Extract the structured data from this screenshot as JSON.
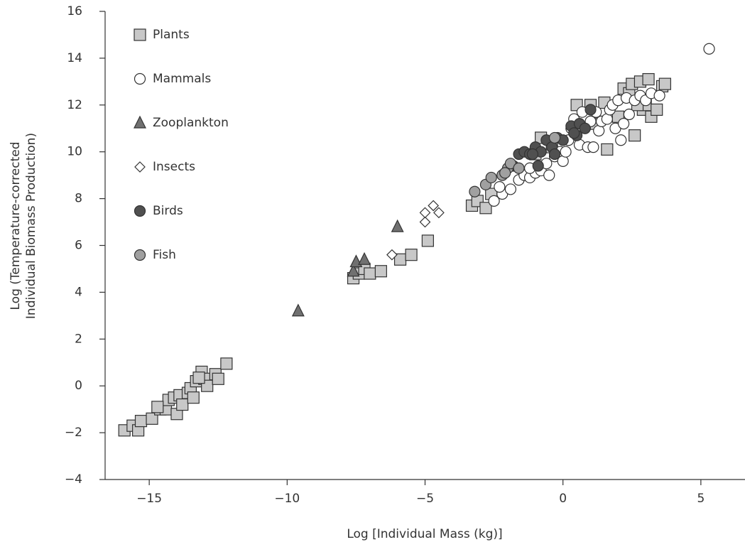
{
  "chart_data": {
    "type": "scatter",
    "xlabel": "Log [Individual Mass (kg)]",
    "ylabel_lines": [
      "Log (Temperature-corrected",
      "Individual Biomass Production)"
    ],
    "xlim": [
      -16.6,
      6.6
    ],
    "ylim": [
      -4,
      16
    ],
    "xticks": [
      {
        "value": -15,
        "label": "−15"
      },
      {
        "value": -10,
        "label": "−10"
      },
      {
        "value": -5,
        "label": "−5"
      },
      0,
      5
    ],
    "yticks": [
      {
        "value": -4,
        "label": "−4"
      },
      {
        "value": -2,
        "label": "−2"
      },
      0,
      2,
      4,
      6,
      8,
      10,
      12,
      14,
      16
    ],
    "legend": "upper left",
    "series": [
      {
        "name": "Plants",
        "marker": "square",
        "color": "#c8c8c8",
        "x": [
          -15.9,
          -15.6,
          -15.4,
          -15.3,
          -14.9,
          -14.6,
          -14.4,
          -14.3,
          -14.1,
          -14.0,
          -13.9,
          -13.8,
          -13.6,
          -13.5,
          -13.4,
          -13.3,
          -13.1,
          -13.0,
          -12.9,
          -12.6,
          -12.5,
          -12.2,
          -14.7,
          -13.2,
          -7.6,
          -7.4,
          -7.2,
          -7.0,
          -6.6,
          -5.9,
          -5.5,
          -4.9,
          -3.3,
          -3.1,
          -2.8,
          -2.6,
          -1.0,
          -0.8,
          -0.4,
          0.5,
          1.0,
          1.2,
          1.5,
          1.6,
          2.0,
          2.2,
          2.4,
          2.5,
          2.6,
          2.8,
          2.9,
          3.0,
          3.1,
          3.2,
          3.4,
          3.6,
          3.7,
          2.7
        ],
        "values": [
          -1.9,
          -1.7,
          -1.9,
          -1.5,
          -1.4,
          -1.0,
          -1.0,
          -0.6,
          -0.5,
          -1.2,
          -0.4,
          -0.8,
          -0.3,
          -0.1,
          -0.5,
          0.2,
          0.6,
          0.3,
          0.0,
          0.5,
          0.3,
          0.95,
          -0.9,
          0.35,
          4.6,
          4.8,
          5.0,
          4.8,
          4.9,
          5.4,
          5.6,
          6.2,
          7.7,
          7.9,
          7.6,
          8.2,
          9.9,
          10.6,
          10.2,
          12.0,
          12.0,
          11.2,
          12.1,
          10.1,
          11.5,
          12.7,
          12.5,
          12.9,
          10.7,
          13.0,
          11.8,
          12.0,
          13.1,
          11.5,
          11.8,
          12.8,
          12.9,
          12.0
        ]
      },
      {
        "name": "Mammals",
        "marker": "circle",
        "color": "#ffffff",
        "x": [
          -2.5,
          -2.2,
          -2.3,
          -1.9,
          -1.6,
          -1.4,
          -1.2,
          -1.0,
          -0.8,
          -0.6,
          -0.5,
          -0.3,
          -0.1,
          0.0,
          0.1,
          0.2,
          0.3,
          0.4,
          0.6,
          0.7,
          0.9,
          1.1,
          1.2,
          1.3,
          1.4,
          1.6,
          1.7,
          1.8,
          1.9,
          2.0,
          2.1,
          2.2,
          2.3,
          2.4,
          2.6,
          2.8,
          3.0,
          3.2,
          3.5,
          1.0,
          -1.2,
          5.3
        ],
        "values": [
          7.9,
          8.2,
          8.5,
          8.4,
          8.8,
          9.0,
          8.9,
          9.1,
          9.2,
          9.5,
          9.0,
          9.8,
          10.0,
          9.6,
          10.0,
          10.5,
          11.0,
          11.4,
          10.3,
          11.7,
          10.2,
          10.2,
          11.7,
          10.9,
          11.3,
          11.4,
          11.8,
          12.0,
          11.0,
          12.2,
          10.5,
          11.2,
          12.3,
          11.6,
          12.2,
          12.4,
          12.2,
          12.5,
          12.4,
          11.3,
          9.3,
          14.4
        ]
      },
      {
        "name": "Zooplankton",
        "marker": "triangle",
        "color": "#707070",
        "x": [
          -9.6,
          -7.6,
          -7.5,
          -7.2,
          -6.0
        ],
        "values": [
          3.2,
          4.9,
          5.3,
          5.4,
          6.8
        ]
      },
      {
        "name": "Insects",
        "marker": "diamond",
        "color": "#ffffff",
        "x": [
          -6.2,
          -5.0,
          -5.0,
          -4.7,
          -4.5
        ],
        "values": [
          5.6,
          7.0,
          7.4,
          7.7,
          7.4
        ]
      },
      {
        "name": "Birds",
        "marker": "circle",
        "color": "#505050",
        "x": [
          -1.8,
          -1.6,
          -1.4,
          -1.2,
          -1.0,
          -0.8,
          -0.6,
          -0.4,
          -0.3,
          -0.2,
          0.0,
          0.3,
          0.5,
          0.6,
          0.8,
          1.0,
          0.4,
          -0.9,
          -1.1
        ],
        "values": [
          9.4,
          9.9,
          10.0,
          9.9,
          10.2,
          10.0,
          10.5,
          10.2,
          9.9,
          10.6,
          10.5,
          11.1,
          10.7,
          11.2,
          11.0,
          11.8,
          10.8,
          9.4,
          9.9
        ]
      },
      {
        "name": "Fish",
        "marker": "circle",
        "color": "#a0a0a0",
        "x": [
          -3.2,
          -2.8,
          -2.6,
          -2.2,
          -2.0,
          -1.9,
          -1.6,
          -0.3,
          -2.1
        ],
        "values": [
          8.3,
          8.6,
          8.9,
          9.0,
          9.3,
          9.5,
          9.3,
          10.6,
          9.1
        ]
      }
    ]
  }
}
